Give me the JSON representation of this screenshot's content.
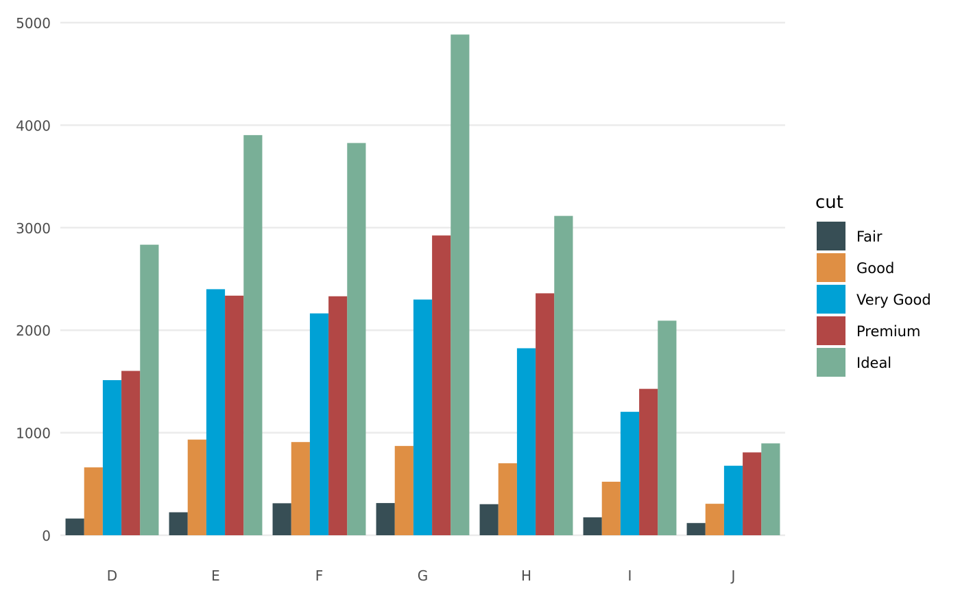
{
  "chart_data": {
    "type": "bar",
    "title": "",
    "xlabel": "",
    "ylabel": "",
    "ylim": [
      0,
      5000
    ],
    "yticks": [
      "0",
      "1000",
      "2000",
      "3000",
      "4000",
      "5000"
    ],
    "grid": true,
    "categories": [
      "D",
      "E",
      "F",
      "G",
      "H",
      "I",
      "J"
    ],
    "legend": {
      "title": "cut",
      "placement": "right"
    },
    "series": [
      {
        "name": "Fair",
        "color": "#374E55",
        "values": [
          163,
          224,
          312,
          314,
          303,
          175,
          119
        ]
      },
      {
        "name": "Good",
        "color": "#DF8F44",
        "values": [
          662,
          933,
          909,
          871,
          702,
          522,
          307
        ]
      },
      {
        "name": "Very Good",
        "color": "#00A1D5",
        "values": [
          1513,
          2400,
          2164,
          2299,
          1824,
          1204,
          678
        ]
      },
      {
        "name": "Premium",
        "color": "#B24745",
        "values": [
          1603,
          2337,
          2331,
          2924,
          2360,
          1428,
          808
        ]
      },
      {
        "name": "Ideal",
        "color": "#79AF97",
        "values": [
          2834,
          3903,
          3826,
          4884,
          3115,
          2093,
          896
        ]
      }
    ]
  }
}
